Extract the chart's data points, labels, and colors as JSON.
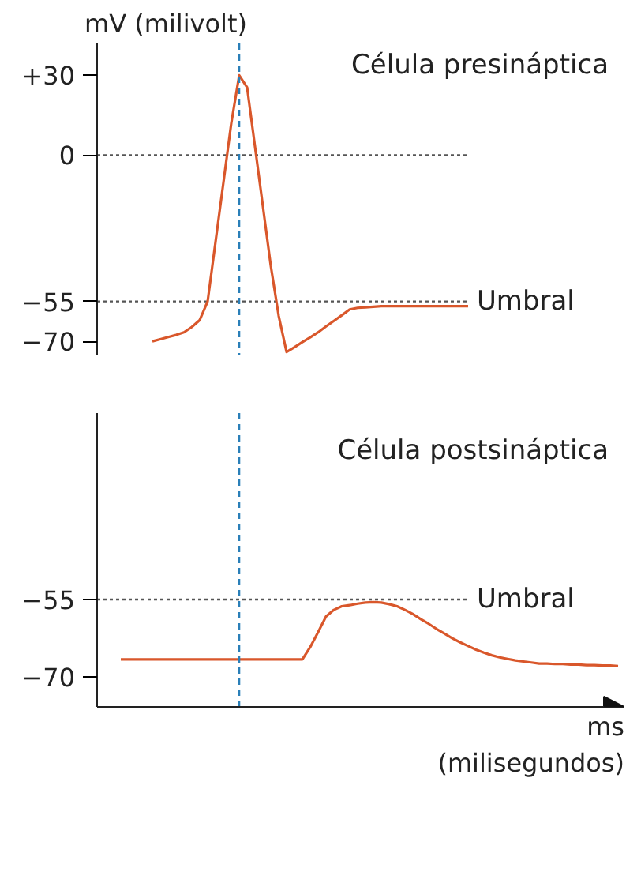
{
  "chart_data": [
    {
      "type": "line",
      "title": "Célula presináptica",
      "ylabel": "mV (milivolt)",
      "categories": [
        null,
        null,
        null,
        null,
        null,
        null,
        null,
        null,
        null,
        null,
        null,
        null,
        null,
        null,
        null,
        null,
        null,
        null,
        null,
        null,
        null,
        null,
        null,
        null,
        null,
        null,
        null,
        null,
        null,
        null,
        null,
        null,
        null,
        null,
        null,
        null,
        null,
        null,
        null,
        null,
        null,
        null,
        null,
        null,
        null,
        null,
        null,
        null,
        null,
        null,
        null,
        null,
        null,
        null,
        null,
        null,
        null,
        null,
        null,
        null,
        null,
        null,
        null,
        null
      ],
      "ylim": [
        -75,
        42
      ],
      "yticks": [
        {
          "value": 30,
          "label": "+30"
        },
        0,
        {
          "value": -55,
          "label": "−55"
        },
        {
          "value": -70,
          "label": "−70"
        }
      ],
      "tick_labels": "y",
      "series": [
        {
          "color": "#d9572b",
          "values": [
            null,
            null,
            null,
            null,
            -70,
            -69.2,
            -68.4,
            -67.6,
            -66.6,
            -64.6,
            -62,
            -55,
            -32.6,
            -10.3,
            12.1,
            30,
            25.5,
            3.2,
            -19.2,
            -41.6,
            -60.4,
            -74,
            -72.2,
            -70.3,
            -68.5,
            -66.6,
            -64.4,
            -62.3,
            -60.2,
            -58,
            -57.4,
            -57.2,
            -57,
            -56.8,
            -56.8,
            -56.8,
            -56.8,
            -56.8,
            -56.8,
            -56.8,
            -56.8,
            -56.8,
            -56.8,
            -56.8,
            -56.8,
            null,
            null,
            null,
            null,
            null,
            null,
            null,
            null,
            null,
            null,
            null,
            null,
            null,
            null,
            null,
            null,
            null,
            null,
            null
          ]
        }
      ],
      "ref_lines": [
        {
          "axis": "y",
          "value": 0,
          "label": null,
          "color": "#555555",
          "line_style": "dotted"
        },
        {
          "axis": "y",
          "value": -55,
          "label": "Umbral",
          "color": "#555555",
          "line_style": "dotted"
        }
      ]
    },
    {
      "type": "line",
      "title": "Célula postsináptica",
      "xlabel": "ms\n(milisegundos)",
      "categories": [
        null,
        null,
        null,
        null,
        null,
        null,
        null,
        null,
        null,
        null,
        null,
        null,
        null,
        null,
        null,
        null,
        null,
        null,
        null,
        null,
        null,
        null,
        null,
        null,
        null,
        null,
        null,
        null,
        null,
        null,
        null,
        null,
        null,
        null,
        null,
        null,
        null,
        null,
        null,
        null,
        null,
        null,
        null,
        null,
        null,
        null,
        null,
        null,
        null,
        null,
        null,
        null,
        null,
        null,
        null,
        null,
        null,
        null,
        null,
        null,
        null,
        null,
        null,
        null
      ],
      "ylim": [
        -75.8,
        -18.9
      ],
      "yticks": [
        {
          "value": -55,
          "label": "−55"
        },
        {
          "value": -70,
          "label": "−70"
        }
      ],
      "tick_labels": "y",
      "series": [
        {
          "color": "#d9572b",
          "values": [
            -66.6,
            -66.6,
            -66.6,
            -66.6,
            -66.6,
            -66.6,
            -66.6,
            -66.6,
            -66.6,
            -66.6,
            -66.6,
            -66.6,
            -66.6,
            -66.6,
            -66.6,
            -66.6,
            -66.6,
            -66.6,
            -66.6,
            -66.6,
            -66.6,
            -66.6,
            -66.6,
            -66.6,
            -64.2,
            -61.3,
            -58.3,
            -57,
            -56.3,
            -56.1,
            -55.8,
            -55.6,
            -55.5,
            -55.6,
            -55.9,
            -56.3,
            -57,
            -57.8,
            -58.8,
            -59.7,
            -60.7,
            -61.6,
            -62.5,
            -63.3,
            -64,
            -64.7,
            -65.3,
            -65.8,
            -66.2,
            -66.5,
            -66.8,
            -67,
            -67.2,
            -67.4,
            -67.4,
            -67.5,
            -67.5,
            -67.6,
            -67.6,
            -67.7,
            -67.7,
            -67.8,
            -67.8,
            -67.9
          ]
        }
      ],
      "ref_lines": [
        {
          "axis": "y",
          "value": -55,
          "label": "Umbral",
          "color": "#555555",
          "line_style": "dotted"
        }
      ]
    }
  ]
}
